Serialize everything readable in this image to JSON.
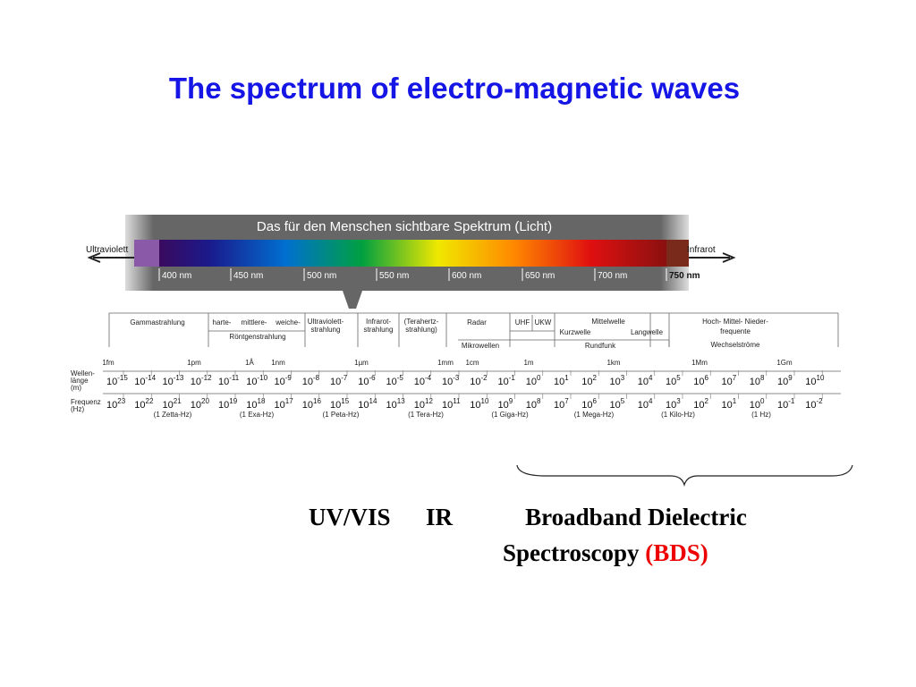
{
  "title": "The spectrum of electro-magnetic waves",
  "visible_spectrum": {
    "banner": "Das für den Menschen sichtbare Spektrum (Licht)",
    "left": "Ultraviolett",
    "right": "Infrarot",
    "wavelengths": [
      "400 nm",
      "450 nm",
      "500 nm",
      "550 nm",
      "600 nm",
      "650 nm",
      "700 nm",
      "750 nm"
    ]
  },
  "bands": [
    {
      "lines": [
        "Gammastrahlung"
      ]
    },
    {
      "lines": [
        "harte-"
      ]
    },
    {
      "lines": [
        "mittlere-"
      ]
    },
    {
      "lines": [
        "weiche-"
      ]
    },
    {
      "lines": [
        "Röntgenstrahlung"
      ]
    },
    {
      "lines": [
        "Ultraviolett-",
        "strahlung"
      ]
    },
    {
      "lines": [
        "Infrarot-",
        "strahlung"
      ]
    },
    {
      "lines": [
        "(Terahertz-",
        "strahlung)"
      ]
    },
    {
      "lines": [
        "Radar"
      ]
    },
    {
      "lines": [
        "UHF"
      ]
    },
    {
      "lines": [
        "UKW"
      ]
    },
    {
      "lines": [
        "Mittelwelle"
      ]
    },
    {
      "lines": [
        "Kurzwelle"
      ]
    },
    {
      "lines": [
        "Langwelle"
      ]
    },
    {
      "lines": [
        "Hoch- Mittel- Nieder-"
      ]
    },
    {
      "lines": [
        "frequente"
      ]
    },
    {
      "lines": [
        "Wechselströme"
      ]
    },
    {
      "lines": [
        "Mikrowellen"
      ]
    },
    {
      "lines": [
        "Rundfunk"
      ]
    }
  ],
  "units": [
    "1fm",
    "1pm",
    "1Å",
    "1nm",
    "1µm",
    "1mm",
    "1cm",
    "1m",
    "1km",
    "1Mm",
    "1Gm"
  ],
  "wavelength_label": [
    "Wellen-",
    "länge",
    "(m)"
  ],
  "frequency_label": [
    "Frequenz",
    "(Hz)"
  ],
  "base": "10",
  "wavelength_exponents": [
    -15,
    -14,
    -13,
    -12,
    -11,
    -10,
    -9,
    -8,
    -7,
    -6,
    -5,
    -4,
    -3,
    -2,
    -1,
    0,
    1,
    2,
    3,
    4,
    5,
    6,
    7,
    8,
    9,
    10
  ],
  "frequency_exponents": [
    23,
    22,
    21,
    20,
    19,
    18,
    17,
    16,
    15,
    14,
    13,
    12,
    11,
    10,
    9,
    8,
    7,
    6,
    5,
    4,
    3,
    2,
    1,
    0,
    -1,
    -2
  ],
  "frequency_notes": [
    "(1 Zetta-Hz)",
    "(1 Exa-Hz)",
    "(1 Peta-Hz)",
    "(1 Tera-Hz)",
    "(1 Giga-Hz)",
    "(1 Mega-Hz)",
    "(1 Kilo-Hz)",
    "(1 Hz)"
  ],
  "caption": {
    "uv_vis": "UV/VIS",
    "ir": "IR",
    "bds_line1": "Broadband Dielectric",
    "bds_line2": "Spectroscopy",
    "bds_abbr": "(BDS)"
  }
}
